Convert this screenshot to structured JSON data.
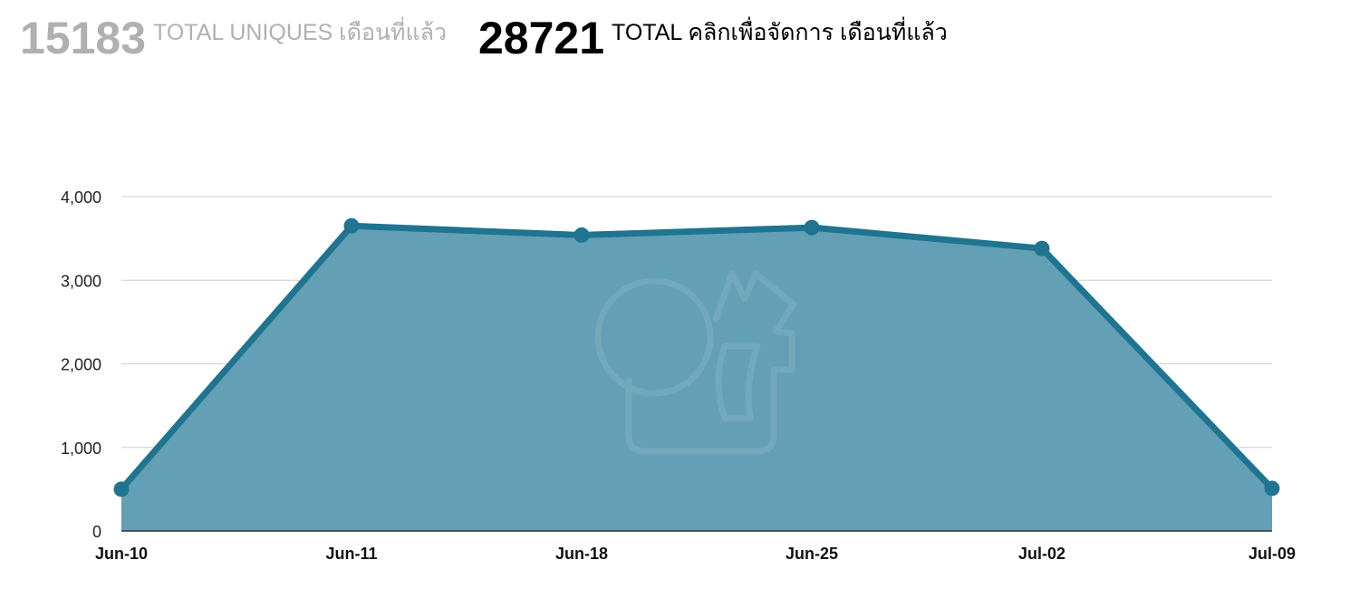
{
  "summary": {
    "uniques": {
      "value": "15183",
      "label": "TOTAL UNIQUES เดือนที่แล้ว"
    },
    "clicks": {
      "value": "28721",
      "label": "TOTAL คลิกเพื่อจัดการ เดือนที่แล้ว"
    }
  },
  "colors": {
    "line": "#1f7490",
    "area": "#639fb5",
    "grid": "#cccccc",
    "muted": "#b0b0b0"
  },
  "chart_data": {
    "type": "area",
    "categories": [
      "Jun-10",
      "Jun-11",
      "Jun-18",
      "Jun-25",
      "Jul-02",
      "Jul-09"
    ],
    "values": [
      500,
      3650,
      3540,
      3630,
      3380,
      510
    ],
    "y_ticks": [
      "0",
      "1,000",
      "2,000",
      "3,000",
      "4,000"
    ],
    "ylim": [
      0,
      4000
    ],
    "grid": true,
    "legend": "none",
    "watermark": "logo-mark"
  }
}
